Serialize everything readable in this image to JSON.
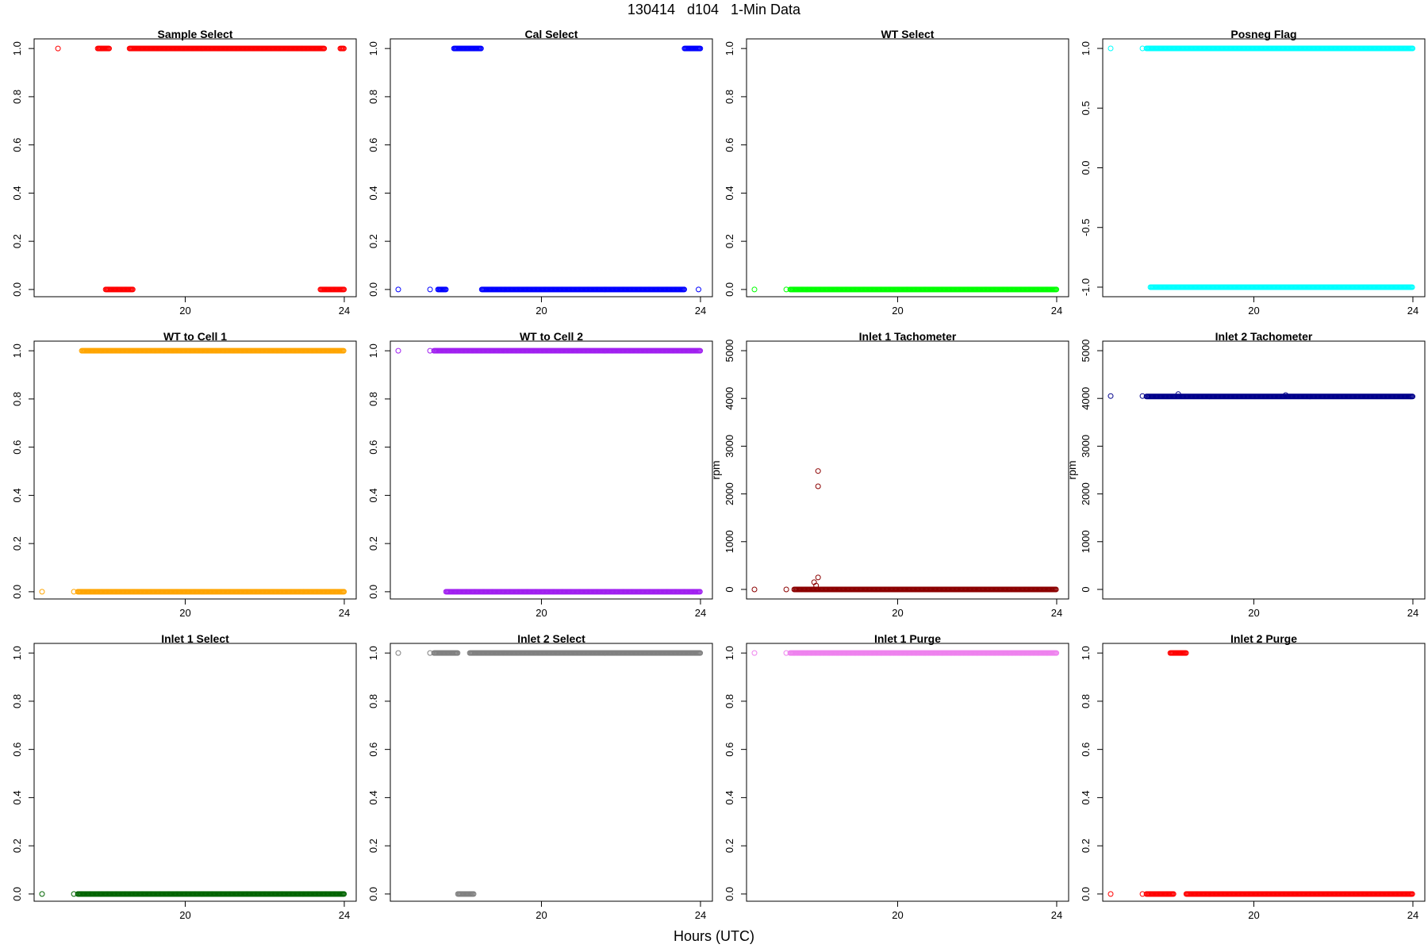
{
  "page": {
    "title": "130414   d104   1-Min Data",
    "x_axis_title": "Hours (UTC)"
  },
  "chart_data": [
    {
      "type": "scatter",
      "title": "Sample Select",
      "ylabel": "",
      "color": "#ff0000",
      "xlim": [
        16.2,
        24.3
      ],
      "ylim": [
        -0.03,
        1.04
      ],
      "xticks": [
        20,
        24
      ],
      "yticks": [
        0.0,
        0.2,
        0.4,
        0.6,
        0.8,
        1.0
      ],
      "ytick_labels": [
        "0.0",
        "0.2",
        "0.4",
        "0.6",
        "0.8",
        "1.0"
      ],
      "points": [
        [
          16.8,
          1
        ]
      ],
      "runs": [
        [
          17.8,
          18.1,
          1
        ],
        [
          18.0,
          18.7,
          0
        ],
        [
          18.6,
          23.5,
          1
        ],
        [
          23.4,
          24.0,
          0
        ],
        [
          23.9,
          24.0,
          1
        ]
      ]
    },
    {
      "type": "scatter",
      "title": "Cal Select",
      "ylabel": "",
      "color": "#0000ff",
      "xlim": [
        16.2,
        24.3
      ],
      "ylim": [
        -0.03,
        1.04
      ],
      "xticks": [
        20,
        24
      ],
      "yticks": [
        0.0,
        0.2,
        0.4,
        0.6,
        0.8,
        1.0
      ],
      "ytick_labels": [
        "0.0",
        "0.2",
        "0.4",
        "0.6",
        "0.8",
        "1.0"
      ],
      "points": [
        [
          16.4,
          0
        ],
        [
          17.2,
          0
        ],
        [
          23.95,
          0
        ]
      ],
      "runs": [
        [
          17.4,
          17.6,
          0
        ],
        [
          17.8,
          18.5,
          1
        ],
        [
          18.5,
          23.6,
          0
        ],
        [
          23.6,
          24.0,
          1
        ]
      ]
    },
    {
      "type": "scatter",
      "title": "WT Select",
      "ylabel": "",
      "color": "#00ff00",
      "xlim": [
        16.2,
        24.3
      ],
      "ylim": [
        -0.03,
        1.04
      ],
      "xticks": [
        20,
        24
      ],
      "yticks": [
        0.0,
        0.2,
        0.4,
        0.6,
        0.8,
        1.0
      ],
      "ytick_labels": [
        "0.0",
        "0.2",
        "0.4",
        "0.6",
        "0.8",
        "1.0"
      ],
      "points": [
        [
          16.4,
          0
        ],
        [
          17.2,
          0
        ]
      ],
      "runs": [
        [
          17.3,
          24.0,
          0
        ]
      ]
    },
    {
      "type": "scatter",
      "title": "Posneg Flag",
      "ylabel": "",
      "color": "#00ffff",
      "xlim": [
        16.2,
        24.3
      ],
      "ylim": [
        -1.08,
        1.08
      ],
      "xticks": [
        20,
        24
      ],
      "yticks": [
        -1.0,
        -0.5,
        0.0,
        0.5,
        1.0
      ],
      "ytick_labels": [
        "-1.0",
        "-0.5",
        "0.0",
        "0.5",
        "1.0"
      ],
      "points": [
        [
          16.4,
          1
        ],
        [
          17.2,
          1
        ]
      ],
      "runs": [
        [
          17.3,
          24.0,
          1
        ],
        [
          17.4,
          24.0,
          -1
        ]
      ]
    },
    {
      "type": "scatter",
      "title": "WT to Cell 1",
      "ylabel": "",
      "color": "#ffa500",
      "xlim": [
        16.2,
        24.3
      ],
      "ylim": [
        -0.03,
        1.04
      ],
      "xticks": [
        20,
        24
      ],
      "yticks": [
        0.0,
        0.2,
        0.4,
        0.6,
        0.8,
        1.0
      ],
      "ytick_labels": [
        "0.0",
        "0.2",
        "0.4",
        "0.6",
        "0.8",
        "1.0"
      ],
      "points": [
        [
          16.4,
          0
        ],
        [
          17.2,
          0
        ]
      ],
      "runs": [
        [
          17.4,
          24.0,
          1
        ],
        [
          17.3,
          24.0,
          0
        ]
      ]
    },
    {
      "type": "scatter",
      "title": "WT to Cell 2",
      "ylabel": "",
      "color": "#a020f0",
      "xlim": [
        16.2,
        24.3
      ],
      "ylim": [
        -0.03,
        1.04
      ],
      "xticks": [
        20,
        24
      ],
      "yticks": [
        0.0,
        0.2,
        0.4,
        0.6,
        0.8,
        1.0
      ],
      "ytick_labels": [
        "0.0",
        "0.2",
        "0.4",
        "0.6",
        "0.8",
        "1.0"
      ],
      "points": [
        [
          16.4,
          1
        ],
        [
          17.2,
          1
        ]
      ],
      "runs": [
        [
          17.3,
          24.0,
          1
        ],
        [
          17.6,
          24.0,
          0
        ]
      ]
    },
    {
      "type": "scatter",
      "title": "Inlet 1 Tachometer",
      "ylabel": "rpm",
      "color": "#8b0000",
      "xlim": [
        16.2,
        24.3
      ],
      "ylim": [
        -200,
        5200
      ],
      "xticks": [
        20,
        24
      ],
      "yticks": [
        0,
        1000,
        2000,
        3000,
        4000,
        5000
      ],
      "ytick_labels": [
        "0",
        "1000",
        "2000",
        "3000",
        "4000",
        "5000"
      ],
      "points": [
        [
          16.4,
          0
        ],
        [
          17.2,
          0
        ],
        [
          17.9,
          150
        ],
        [
          18.0,
          250
        ],
        [
          17.95,
          80
        ],
        [
          18.0,
          2480
        ],
        [
          18.0,
          2160
        ]
      ],
      "runs": [
        [
          17.4,
          24.0,
          0
        ]
      ]
    },
    {
      "type": "scatter",
      "title": "Inlet 2 Tachometer",
      "ylabel": "rpm",
      "color": "#00008b",
      "xlim": [
        16.2,
        24.3
      ],
      "ylim": [
        -200,
        5200
      ],
      "xticks": [
        20,
        24
      ],
      "yticks": [
        0,
        1000,
        2000,
        3000,
        4000,
        5000
      ],
      "ytick_labels": [
        "0",
        "1000",
        "2000",
        "3000",
        "4000",
        "5000"
      ],
      "points": [
        [
          16.4,
          4050
        ],
        [
          17.2,
          4050
        ],
        [
          18.1,
          4090
        ],
        [
          20.8,
          4070
        ]
      ],
      "runs": [
        [
          17.3,
          24.0,
          4040
        ]
      ]
    },
    {
      "type": "scatter",
      "title": "Inlet 1 Select",
      "ylabel": "",
      "color": "#006400",
      "xlim": [
        16.2,
        24.3
      ],
      "ylim": [
        -0.03,
        1.04
      ],
      "xticks": [
        20,
        24
      ],
      "yticks": [
        0.0,
        0.2,
        0.4,
        0.6,
        0.8,
        1.0
      ],
      "ytick_labels": [
        "0.0",
        "0.2",
        "0.4",
        "0.6",
        "0.8",
        "1.0"
      ],
      "points": [
        [
          16.4,
          0
        ],
        [
          17.2,
          0
        ]
      ],
      "runs": [
        [
          17.3,
          24.0,
          0
        ]
      ]
    },
    {
      "type": "scatter",
      "title": "Inlet 2 Select",
      "ylabel": "",
      "color": "#808080",
      "xlim": [
        16.2,
        24.3
      ],
      "ylim": [
        -0.03,
        1.04
      ],
      "xticks": [
        20,
        24
      ],
      "yticks": [
        0.0,
        0.2,
        0.4,
        0.6,
        0.8,
        1.0
      ],
      "ytick_labels": [
        "0.0",
        "0.2",
        "0.4",
        "0.6",
        "0.8",
        "1.0"
      ],
      "points": [
        [
          16.4,
          1
        ],
        [
          17.2,
          1
        ]
      ],
      "runs": [
        [
          17.3,
          17.9,
          1
        ],
        [
          17.9,
          18.3,
          0
        ],
        [
          18.2,
          24.0,
          1
        ]
      ]
    },
    {
      "type": "scatter",
      "title": "Inlet 1 Purge",
      "ylabel": "",
      "color": "#ee82ee",
      "xlim": [
        16.2,
        24.3
      ],
      "ylim": [
        -0.03,
        1.04
      ],
      "xticks": [
        20,
        24
      ],
      "yticks": [
        0.0,
        0.2,
        0.4,
        0.6,
        0.8,
        1.0
      ],
      "ytick_labels": [
        "0.0",
        "0.2",
        "0.4",
        "0.6",
        "0.8",
        "1.0"
      ],
      "points": [
        [
          16.4,
          1
        ],
        [
          17.2,
          1
        ]
      ],
      "runs": [
        [
          17.3,
          24.0,
          1
        ]
      ]
    },
    {
      "type": "scatter",
      "title": "Inlet 2 Purge",
      "ylabel": "",
      "color": "#ff0000",
      "xlim": [
        16.2,
        24.3
      ],
      "ylim": [
        -0.03,
        1.04
      ],
      "xticks": [
        20,
        24
      ],
      "yticks": [
        0.0,
        0.2,
        0.4,
        0.6,
        0.8,
        1.0
      ],
      "ytick_labels": [
        "0.0",
        "0.2",
        "0.4",
        "0.6",
        "0.8",
        "1.0"
      ],
      "points": [
        [
          16.4,
          0
        ],
        [
          17.2,
          0
        ]
      ],
      "runs": [
        [
          17.3,
          18.0,
          0
        ],
        [
          17.9,
          18.3,
          1
        ],
        [
          18.3,
          24.0,
          0
        ]
      ]
    }
  ]
}
